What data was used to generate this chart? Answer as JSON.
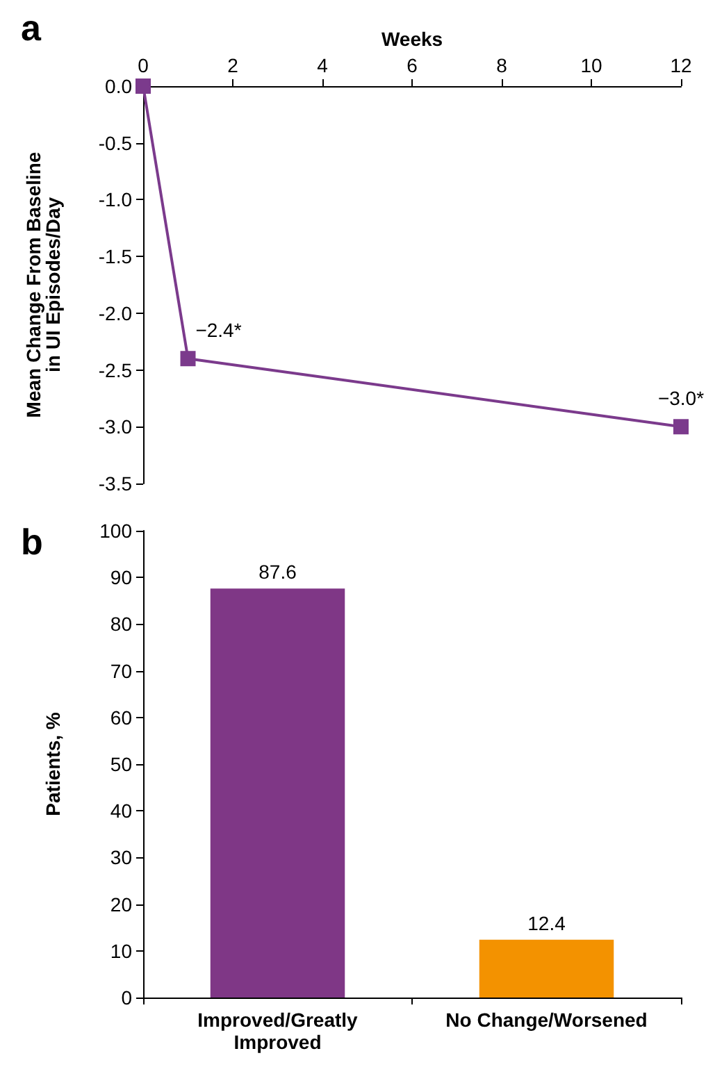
{
  "chart_data": [
    {
      "type": "line",
      "title": "a",
      "xlabel": "Weeks",
      "ylabel": "Mean Change From Baseline\nin UI Episodes/Day",
      "x": [
        0,
        1,
        12
      ],
      "series": [
        {
          "color": "#7b3a8c",
          "values": [
            0,
            -2.4,
            -3.0
          ],
          "value_labels": [
            null,
            "−2.4*",
            "−3.0*"
          ]
        }
      ],
      "xlim": [
        0,
        12
      ],
      "xticks": [
        0,
        2,
        4,
        6,
        8,
        10,
        12
      ],
      "ylim": [
        -3.5,
        0
      ],
      "yticks": [
        {
          "value": 0,
          "label": "0.0"
        },
        {
          "value": -0.5,
          "label": "-0.5"
        },
        {
          "value": -1,
          "label": "-1.0"
        },
        {
          "value": -1.5,
          "label": "-1.5"
        },
        {
          "value": -2,
          "label": "-2.0"
        },
        {
          "value": -2.5,
          "label": "-2.5"
        },
        {
          "value": -3,
          "label": "-3.0"
        },
        {
          "value": -3.5,
          "label": "-3.5"
        }
      ],
      "marker": "square",
      "grid": false
    },
    {
      "type": "bar",
      "title": "b",
      "ylabel": "Patients, %",
      "categories": [
        "Improved/Greatly\nImproved",
        "No Change/Worsened"
      ],
      "values": [
        87.6,
        12.4
      ],
      "colors": [
        "#7f3786",
        "#f39200"
      ],
      "ylim": [
        0,
        100
      ],
      "yticks": [
        0,
        10,
        20,
        30,
        40,
        50,
        60,
        70,
        80,
        90,
        100
      ],
      "data_labels": true,
      "grid": false
    }
  ]
}
